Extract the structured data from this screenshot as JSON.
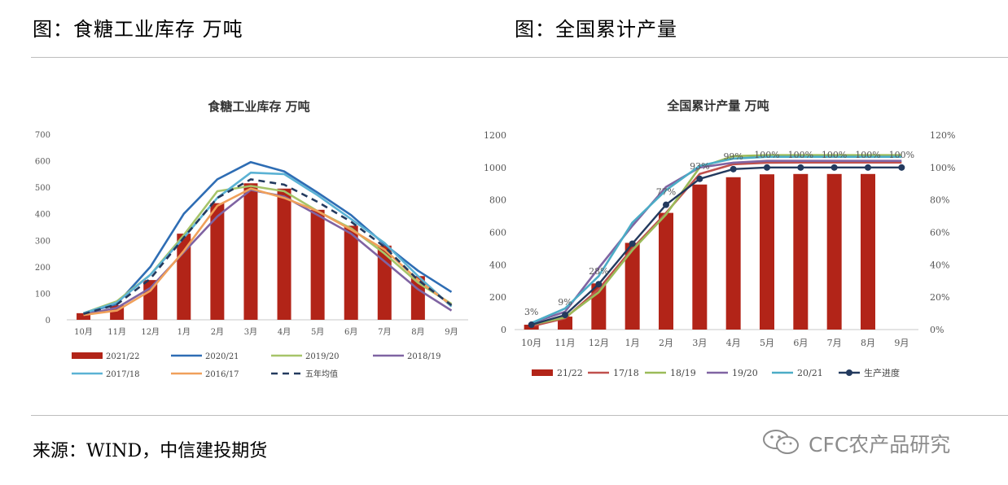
{
  "header": {
    "left": "图：食糖工业库存 万吨",
    "right": "图：全国累计产量"
  },
  "footer": {
    "source": "来源：WIND，中信建投期货",
    "watermark": "CFC农产品研究",
    "watermark_icon": "wechat-icon"
  },
  "chart_data": [
    {
      "type": "bar",
      "title": "食糖工业库存 万吨",
      "categories": [
        "10月",
        "11月",
        "12月",
        "1月",
        "2月",
        "3月",
        "4月",
        "5月",
        "6月",
        "7月",
        "8月",
        "9月"
      ],
      "ylim": [
        0,
        700
      ],
      "yticks": [
        0,
        100,
        200,
        300,
        400,
        500,
        600,
        700
      ],
      "grid": false,
      "legend_position": "bottom",
      "series": [
        {
          "name": "2021/22",
          "kind": "bar",
          "color": "#b22418",
          "values": [
            25,
            55,
            150,
            325,
            440,
            515,
            495,
            415,
            355,
            280,
            165,
            null
          ]
        },
        {
          "name": "2020/21",
          "kind": "line",
          "color": "#2e6db4",
          "values": [
            25,
            60,
            200,
            400,
            530,
            595,
            560,
            480,
            395,
            285,
            185,
            105
          ]
        },
        {
          "name": "2019/20",
          "kind": "line",
          "color": "#a6c469",
          "values": [
            25,
            70,
            170,
            320,
            485,
            505,
            485,
            410,
            345,
            250,
            140,
            60
          ]
        },
        {
          "name": "2018/19",
          "kind": "line",
          "color": "#7f63a2",
          "values": [
            20,
            45,
            120,
            255,
            390,
            490,
            465,
            395,
            325,
            220,
            115,
            35
          ]
        },
        {
          "name": "2017/18",
          "kind": "line",
          "color": "#5bb2d4",
          "values": [
            25,
            65,
            170,
            310,
            460,
            555,
            550,
            470,
            380,
            290,
            165,
            50
          ]
        },
        {
          "name": "2016/17",
          "kind": "line",
          "color": "#f0a05a",
          "values": [
            18,
            35,
            110,
            260,
            430,
            495,
            460,
            410,
            340,
            265,
            150,
            55
          ]
        },
        {
          "name": "五年均值",
          "kind": "dashed",
          "color": "#233a5e",
          "values": [
            22,
            58,
            155,
            310,
            460,
            530,
            510,
            445,
            370,
            275,
            150,
            55
          ]
        }
      ]
    },
    {
      "type": "bar",
      "title": "全国累计产量 万吨",
      "categories": [
        "10月",
        "11月",
        "12月",
        "1月",
        "2月",
        "3月",
        "4月",
        "5月",
        "6月",
        "7月",
        "8月",
        "9月"
      ],
      "ylim": [
        0,
        1200
      ],
      "yticks": [
        0,
        200,
        400,
        600,
        800,
        1000,
        1200
      ],
      "y2lim": [
        0,
        1.2
      ],
      "y2ticks": [
        "0%",
        "20%",
        "40%",
        "60%",
        "80%",
        "100%",
        "120%"
      ],
      "grid": false,
      "legend_position": "bottom",
      "series": [
        {
          "name": "21/22",
          "kind": "bar",
          "color": "#b22418",
          "values": [
            30,
            80,
            285,
            535,
            720,
            895,
            940,
            958,
            960,
            960,
            960,
            null
          ]
        },
        {
          "name": "17/18",
          "kind": "line",
          "color": "#c0504d",
          "values": [
            20,
            70,
            250,
            500,
            720,
            960,
            1020,
            1030,
            1031,
            1031,
            1031,
            1031
          ]
        },
        {
          "name": "18/19",
          "kind": "line",
          "color": "#9bbb59",
          "values": [
            30,
            75,
            230,
            490,
            710,
            1000,
            1070,
            1076,
            1076,
            1076,
            1076,
            1076
          ]
        },
        {
          "name": "19/20",
          "kind": "line",
          "color": "#8064a2",
          "values": [
            40,
            110,
            380,
            640,
            880,
            1000,
            1030,
            1041,
            1041,
            1041,
            1041,
            1041
          ]
        },
        {
          "name": "20/21",
          "kind": "line",
          "color": "#4bacc6",
          "values": [
            40,
            130,
            330,
            660,
            860,
            1010,
            1055,
            1066,
            1066,
            1066,
            1066,
            1066
          ]
        },
        {
          "name": "生产进度",
          "kind": "line-marker",
          "axis": "right",
          "color": "#233a5e",
          "values": [
            0.03,
            0.09,
            0.28,
            0.53,
            0.77,
            0.93,
            0.99,
            1.0,
            1.0,
            1.0,
            1.0,
            1.0
          ]
        }
      ],
      "data_labels": [
        "3%",
        "9%",
        "28%",
        "",
        "77%",
        "93%",
        "99%",
        "100%",
        "100%",
        "100%",
        "100%",
        "100%"
      ]
    }
  ]
}
